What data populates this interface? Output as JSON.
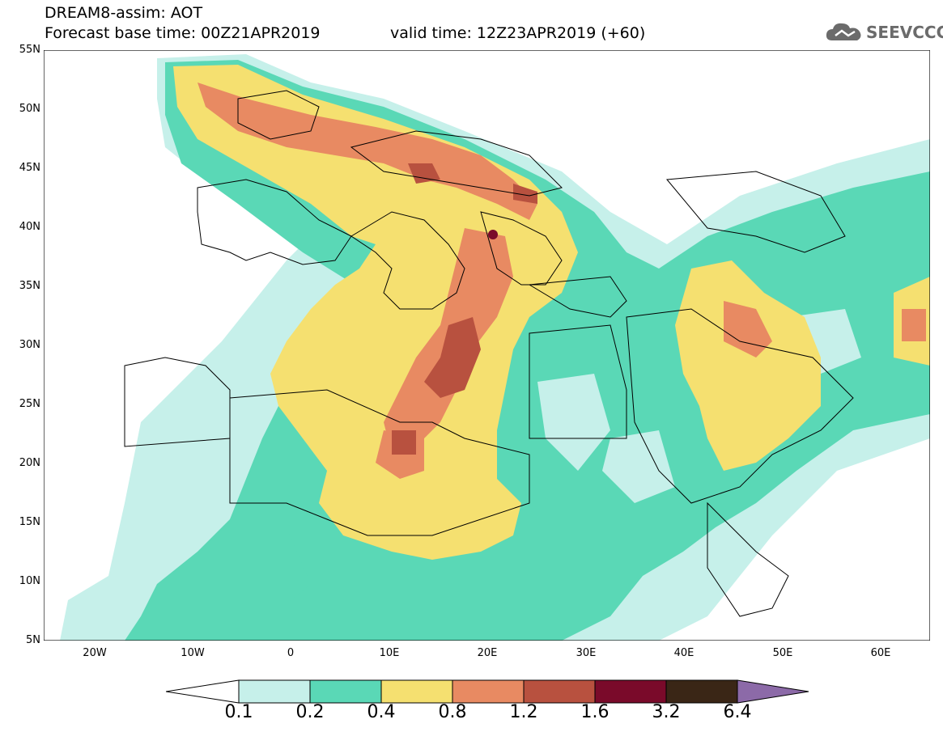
{
  "header": {
    "title_line1": "DREAM8-assim: AOT",
    "title_line2": "Forecast base time: 00Z21APR2019",
    "valid_time": "valid time: 12Z23APR2019 (+60)"
  },
  "logo": {
    "text": "SEEVCCC",
    "icon": "cloud-icon"
  },
  "axes": {
    "lat_labels": [
      "55N",
      "50N",
      "45N",
      "40N",
      "35N",
      "30N",
      "25N",
      "20N",
      "15N",
      "10N",
      "5N"
    ],
    "lon_labels": [
      "20W",
      "10W",
      "0",
      "10E",
      "20E",
      "30E",
      "40E",
      "50E",
      "60E"
    ]
  },
  "colorbar": {
    "labels": [
      "0.1",
      "0.2",
      "0.4",
      "0.8",
      "1.2",
      "1.6",
      "3.2",
      "6.4"
    ],
    "colors": [
      "#c6f0ea",
      "#5ad8b6",
      "#f5e070",
      "#e88a62",
      "#b8513f",
      "#7a0a2a",
      "#3a2616",
      "#8c6aa8"
    ]
  },
  "map_colors": {
    "water": "#ffffff",
    "level_0_1": "#c6f0ea",
    "level_0_2": "#5ad8b6",
    "level_0_4": "#f5e070",
    "level_0_8": "#e88a62",
    "level_1_2": "#b8513f",
    "level_1_6": "#7a0a2a"
  }
}
